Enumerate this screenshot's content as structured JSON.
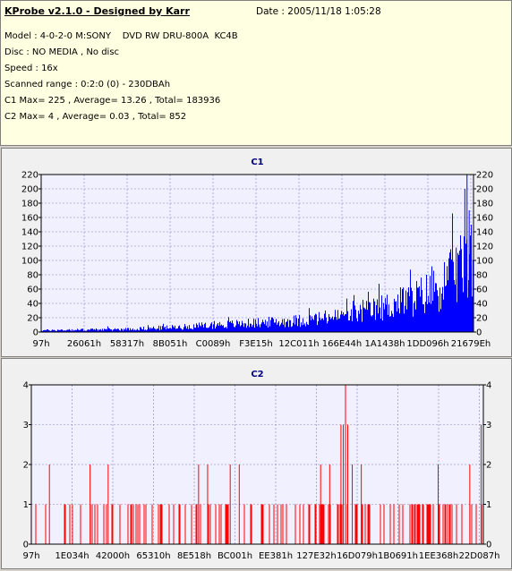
{
  "info": {
    "title": "KProbe v2.1.0 - Designed by Karr",
    "date": "Date : 2005/11/18 1:05:28",
    "model": "Model : 4-0-2-0 M:SONY    DVD RW DRU-800A  KC4B",
    "disc": "Disc : NO MEDIA , No disc",
    "speed": "Speed : 16x",
    "scanned_range": "Scanned range : 0:2:0 (0) - 230DBAh",
    "c1_summary": "C1 Max= 225 , Average= 13.26 , Total= 183936",
    "c2_summary": "C2 Max= 4 , Average= 0.03 , Total= 852"
  },
  "colors": {
    "info_background": "#ffffe1",
    "panel_background": "#f0f0f0",
    "plot_background": "#f0f0ff",
    "grid": "#8080c0",
    "c1_bars": "#0000ff",
    "c2_bars": "#ff0000",
    "title_text": "#000080"
  },
  "chart_data": [
    {
      "type": "bar",
      "title": "C1",
      "color": "#0000ff",
      "ylim": [
        0,
        220
      ],
      "yticks": [
        0,
        20,
        40,
        60,
        80,
        100,
        120,
        140,
        160,
        180,
        200,
        220
      ],
      "xtick_labels": [
        "97h",
        "26061h",
        "58317h",
        "8B051h",
        "C0089h",
        "F3E15h",
        "12C011h",
        "166E44h",
        "1A1438h",
        "1DD096h",
        "21679Eh"
      ],
      "grid": true,
      "max": 225,
      "average": 13.26,
      "total": 183936,
      "envelope": [
        [
          0,
          3
        ],
        [
          0.1,
          4
        ],
        [
          0.2,
          5
        ],
        [
          0.3,
          8
        ],
        [
          0.4,
          12
        ],
        [
          0.5,
          16
        ],
        [
          0.6,
          20
        ],
        [
          0.7,
          28
        ],
        [
          0.75,
          35
        ],
        [
          0.8,
          45
        ],
        [
          0.85,
          55
        ],
        [
          0.9,
          70
        ],
        [
          0.95,
          95
        ],
        [
          1.0,
          120
        ]
      ],
      "peaks": [
        {
          "x": 0.985,
          "value": 225
        },
        {
          "x": 0.98,
          "value": 200
        },
        {
          "x": 0.99,
          "value": 170
        },
        {
          "x": 0.995,
          "value": 150
        },
        {
          "x": 0.97,
          "value": 135
        },
        {
          "x": 0.96,
          "value": 118
        }
      ]
    },
    {
      "type": "bar",
      "title": "C2",
      "color": "#ff0000",
      "ylim": [
        0,
        4
      ],
      "yticks": [
        0,
        1,
        2,
        3,
        4
      ],
      "xtick_labels": [
        "97h",
        "1E034h",
        "42000h",
        "65310h",
        "8E518h",
        "BC001h",
        "EE381h",
        "127E32h",
        "16D079h",
        "1B0691h",
        "1EE368h",
        "22D087h"
      ],
      "grid": true,
      "max": 4,
      "average": 0.03,
      "total": 852,
      "values_at_2": [
        0.0,
        0.04,
        0.13,
        0.17,
        0.37,
        0.39,
        0.44,
        0.46,
        0.64,
        0.66,
        0.71,
        0.73,
        0.9,
        0.97,
        1.0
      ],
      "values_at_3": [
        0.685,
        0.69,
        0.7,
        0.995
      ],
      "values_at_4": [
        0.695
      ],
      "density_at_1": 0.35
    }
  ]
}
